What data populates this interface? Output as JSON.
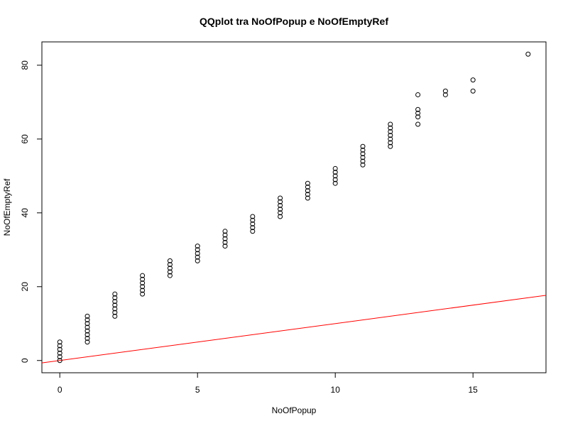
{
  "chart_data": {
    "type": "scatter",
    "title": "QQplot tra NoOfPopup e NoOfEmptyRef",
    "xlabel": "NoOfPopup",
    "ylabel": "NoOfEmptyRef",
    "xlim": [
      -0.65,
      17.65
    ],
    "ylim": [
      -3.32,
      86.32
    ],
    "x_ticks": [
      0,
      5,
      10,
      15
    ],
    "y_ticks": [
      0,
      20,
      40,
      60,
      80
    ],
    "grid": false,
    "legend": "none",
    "marker": "open-circle",
    "points": [
      {
        "x": 0,
        "y": 0
      },
      {
        "x": 0,
        "y": 1
      },
      {
        "x": 0,
        "y": 2
      },
      {
        "x": 0,
        "y": 3
      },
      {
        "x": 0,
        "y": 4
      },
      {
        "x": 0,
        "y": 5
      },
      {
        "x": 1,
        "y": 5
      },
      {
        "x": 1,
        "y": 6
      },
      {
        "x": 1,
        "y": 7
      },
      {
        "x": 1,
        "y": 8
      },
      {
        "x": 1,
        "y": 9
      },
      {
        "x": 1,
        "y": 10
      },
      {
        "x": 1,
        "y": 11
      },
      {
        "x": 1,
        "y": 12
      },
      {
        "x": 2,
        "y": 12
      },
      {
        "x": 2,
        "y": 13
      },
      {
        "x": 2,
        "y": 14
      },
      {
        "x": 2,
        "y": 15
      },
      {
        "x": 2,
        "y": 16
      },
      {
        "x": 2,
        "y": 17
      },
      {
        "x": 2,
        "y": 18
      },
      {
        "x": 3,
        "y": 18
      },
      {
        "x": 3,
        "y": 19
      },
      {
        "x": 3,
        "y": 20
      },
      {
        "x": 3,
        "y": 21
      },
      {
        "x": 3,
        "y": 22
      },
      {
        "x": 3,
        "y": 23
      },
      {
        "x": 4,
        "y": 23
      },
      {
        "x": 4,
        "y": 24
      },
      {
        "x": 4,
        "y": 25
      },
      {
        "x": 4,
        "y": 26
      },
      {
        "x": 4,
        "y": 27
      },
      {
        "x": 5,
        "y": 27
      },
      {
        "x": 5,
        "y": 28
      },
      {
        "x": 5,
        "y": 29
      },
      {
        "x": 5,
        "y": 30
      },
      {
        "x": 5,
        "y": 31
      },
      {
        "x": 6,
        "y": 31
      },
      {
        "x": 6,
        "y": 32
      },
      {
        "x": 6,
        "y": 33
      },
      {
        "x": 6,
        "y": 34
      },
      {
        "x": 6,
        "y": 35
      },
      {
        "x": 7,
        "y": 35
      },
      {
        "x": 7,
        "y": 36
      },
      {
        "x": 7,
        "y": 37
      },
      {
        "x": 7,
        "y": 38
      },
      {
        "x": 7,
        "y": 39
      },
      {
        "x": 8,
        "y": 39
      },
      {
        "x": 8,
        "y": 40
      },
      {
        "x": 8,
        "y": 41
      },
      {
        "x": 8,
        "y": 42
      },
      {
        "x": 8,
        "y": 43
      },
      {
        "x": 8,
        "y": 44
      },
      {
        "x": 9,
        "y": 44
      },
      {
        "x": 9,
        "y": 45
      },
      {
        "x": 9,
        "y": 46
      },
      {
        "x": 9,
        "y": 47
      },
      {
        "x": 9,
        "y": 48
      },
      {
        "x": 10,
        "y": 48
      },
      {
        "x": 10,
        "y": 49
      },
      {
        "x": 10,
        "y": 50
      },
      {
        "x": 10,
        "y": 51
      },
      {
        "x": 10,
        "y": 52
      },
      {
        "x": 11,
        "y": 53
      },
      {
        "x": 11,
        "y": 54
      },
      {
        "x": 11,
        "y": 55
      },
      {
        "x": 11,
        "y": 56
      },
      {
        "x": 11,
        "y": 57
      },
      {
        "x": 11,
        "y": 58
      },
      {
        "x": 12,
        "y": 58
      },
      {
        "x": 12,
        "y": 59
      },
      {
        "x": 12,
        "y": 60
      },
      {
        "x": 12,
        "y": 61
      },
      {
        "x": 12,
        "y": 62
      },
      {
        "x": 12,
        "y": 63
      },
      {
        "x": 12,
        "y": 64
      },
      {
        "x": 13,
        "y": 64
      },
      {
        "x": 13,
        "y": 66
      },
      {
        "x": 13,
        "y": 67
      },
      {
        "x": 13,
        "y": 68
      },
      {
        "x": 13,
        "y": 72
      },
      {
        "x": 14,
        "y": 72
      },
      {
        "x": 14,
        "y": 73
      },
      {
        "x": 15,
        "y": 73
      },
      {
        "x": 15,
        "y": 76
      },
      {
        "x": 17,
        "y": 83
      }
    ],
    "reference_line": {
      "intercept": 0,
      "slope": 1,
      "color": "#ff0000"
    }
  }
}
